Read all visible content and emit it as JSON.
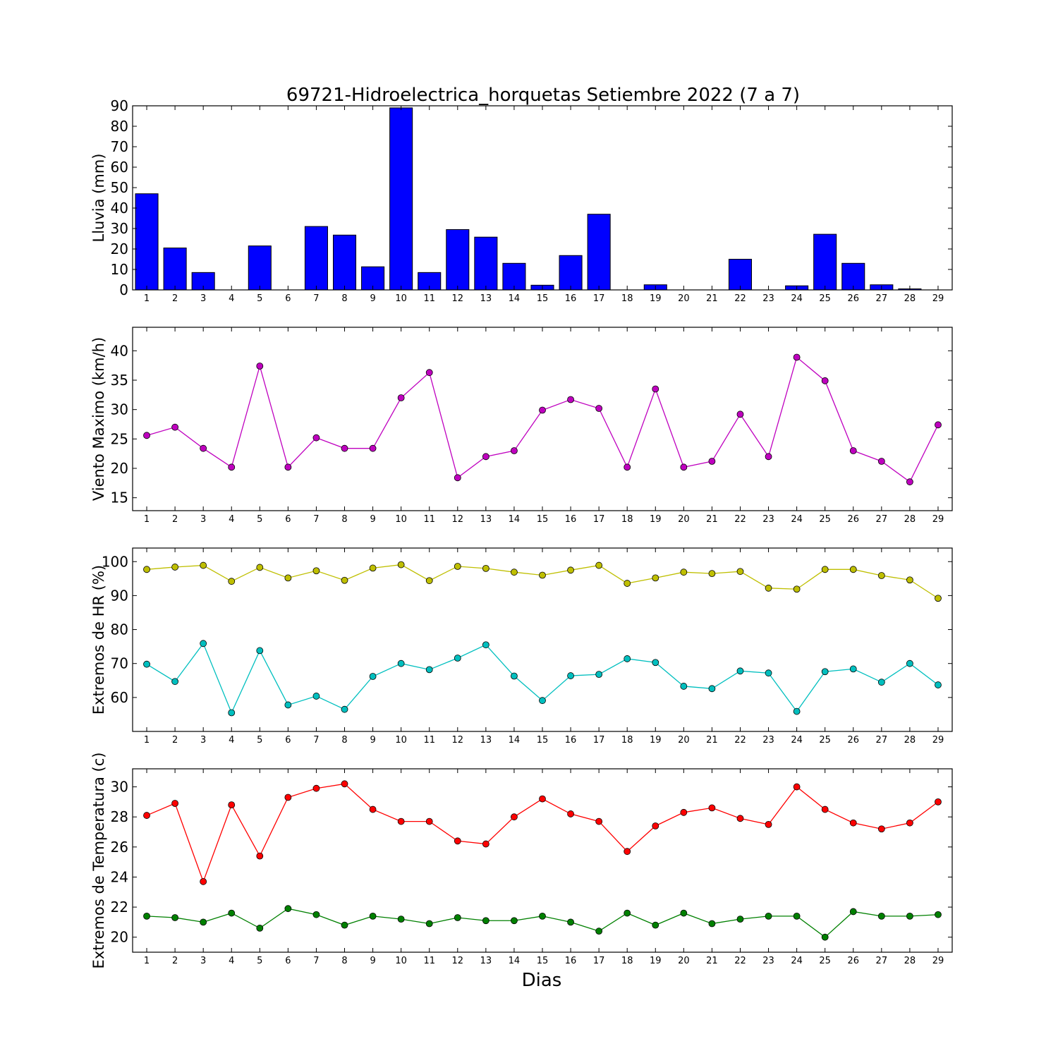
{
  "figure": {
    "title": "69721-Hidroelectrica_horquetas Setiembre 2022  (7 a 7)",
    "xlabel": "Dias"
  },
  "chart_data": [
    {
      "type": "bar",
      "id": "lluvia",
      "ylabel": "Lluvia (mm)",
      "categories": [
        "1",
        "2",
        "3",
        "4",
        "5",
        "6",
        "7",
        "8",
        "9",
        "10",
        "11",
        "12",
        "13",
        "14",
        "15",
        "16",
        "17",
        "18",
        "19",
        "20",
        "21",
        "22",
        "23",
        "24",
        "25",
        "26",
        "27",
        "28",
        "29"
      ],
      "xlim": [
        0.5,
        29.5
      ],
      "ylim": [
        0,
        90
      ],
      "yticks": [
        0,
        10,
        20,
        30,
        40,
        50,
        60,
        70,
        80,
        90
      ],
      "color": "#0000ff",
      "values": [
        47,
        20.5,
        8.5,
        0,
        21.5,
        0,
        31,
        26.8,
        11.3,
        89,
        8.5,
        29.5,
        25.8,
        13,
        2.3,
        16.8,
        37,
        0,
        2.5,
        0,
        0,
        15,
        0,
        2,
        27.2,
        13,
        2.5,
        0.5,
        0
      ]
    },
    {
      "type": "line",
      "id": "viento",
      "ylabel": "Viento Maximo (km/h)",
      "x": [
        1,
        2,
        3,
        4,
        5,
        6,
        7,
        8,
        9,
        10,
        11,
        12,
        13,
        14,
        15,
        16,
        17,
        18,
        19,
        20,
        21,
        22,
        23,
        24,
        25,
        26,
        27,
        28,
        29
      ],
      "xlim": [
        0.5,
        29.5
      ],
      "ylim": [
        12.8,
        44
      ],
      "yticks": [
        15,
        20,
        25,
        30,
        35,
        40
      ],
      "series": [
        {
          "color": "#bf00bf",
          "values": [
            25.6,
            27.0,
            23.4,
            20.2,
            37.4,
            20.2,
            25.2,
            23.4,
            23.4,
            32.0,
            36.3,
            18.4,
            22.0,
            23.0,
            29.9,
            31.7,
            30.2,
            20.2,
            33.5,
            20.2,
            21.2,
            29.2,
            22.0,
            38.9,
            34.9,
            23.0,
            21.2,
            17.7,
            27.4
          ]
        }
      ]
    },
    {
      "type": "line",
      "id": "hr",
      "ylabel": "Extremos de HR (%)",
      "x": [
        1,
        2,
        3,
        4,
        5,
        6,
        7,
        8,
        9,
        10,
        11,
        12,
        13,
        14,
        15,
        16,
        17,
        18,
        19,
        20,
        21,
        22,
        23,
        24,
        25,
        26,
        27,
        28,
        29
      ],
      "xlim": [
        0.5,
        29.5
      ],
      "ylim": [
        50,
        104
      ],
      "yticks": [
        60,
        70,
        80,
        90,
        100
      ],
      "series": [
        {
          "color": "#bfbf00",
          "values": [
            97.7,
            98.4,
            98.9,
            94.2,
            98.3,
            95.2,
            97.3,
            94.5,
            98.1,
            99.1,
            94.4,
            98.6,
            98.0,
            96.9,
            96.0,
            97.5,
            98.9,
            93.6,
            95.2,
            96.9,
            96.5,
            97.1,
            92.2,
            91.9,
            97.7,
            97.7,
            95.9,
            94.6,
            89.2
          ]
        },
        {
          "color": "#00bfbf",
          "values": [
            69.8,
            64.7,
            75.9,
            55.5,
            73.8,
            57.8,
            60.4,
            56.5,
            66.2,
            70.0,
            68.2,
            71.6,
            75.5,
            66.3,
            59.1,
            66.4,
            66.8,
            71.4,
            70.3,
            63.3,
            62.6,
            67.8,
            67.2,
            55.9,
            67.6,
            68.4,
            64.5,
            70.0,
            63.7
          ]
        }
      ]
    },
    {
      "type": "line",
      "id": "temperatura",
      "ylabel": "Extremos de Temperatura (c)",
      "x": [
        1,
        2,
        3,
        4,
        5,
        6,
        7,
        8,
        9,
        10,
        11,
        12,
        13,
        14,
        15,
        16,
        17,
        18,
        19,
        20,
        21,
        22,
        23,
        24,
        25,
        26,
        27,
        28,
        29
      ],
      "xlim": [
        0.5,
        29.5
      ],
      "ylim": [
        19,
        31.2
      ],
      "yticks": [
        20,
        22,
        24,
        26,
        28,
        30
      ],
      "series": [
        {
          "color": "#ff0000",
          "values": [
            28.1,
            28.9,
            23.7,
            28.8,
            25.4,
            29.3,
            29.9,
            30.2,
            28.5,
            27.7,
            27.7,
            26.4,
            26.2,
            28.0,
            29.2,
            28.2,
            27.7,
            25.7,
            27.4,
            28.3,
            28.6,
            27.9,
            27.5,
            30.0,
            28.5,
            27.6,
            27.2,
            27.6,
            29.0
          ]
        },
        {
          "color": "#008000",
          "values": [
            21.4,
            21.3,
            21.0,
            21.6,
            20.6,
            21.9,
            21.5,
            20.8,
            21.4,
            21.2,
            20.9,
            21.3,
            21.1,
            21.1,
            21.4,
            21.0,
            20.4,
            21.6,
            20.8,
            21.6,
            20.9,
            21.2,
            21.4,
            21.4,
            20.0,
            21.7,
            21.4,
            21.4,
            21.5
          ]
        }
      ]
    }
  ]
}
